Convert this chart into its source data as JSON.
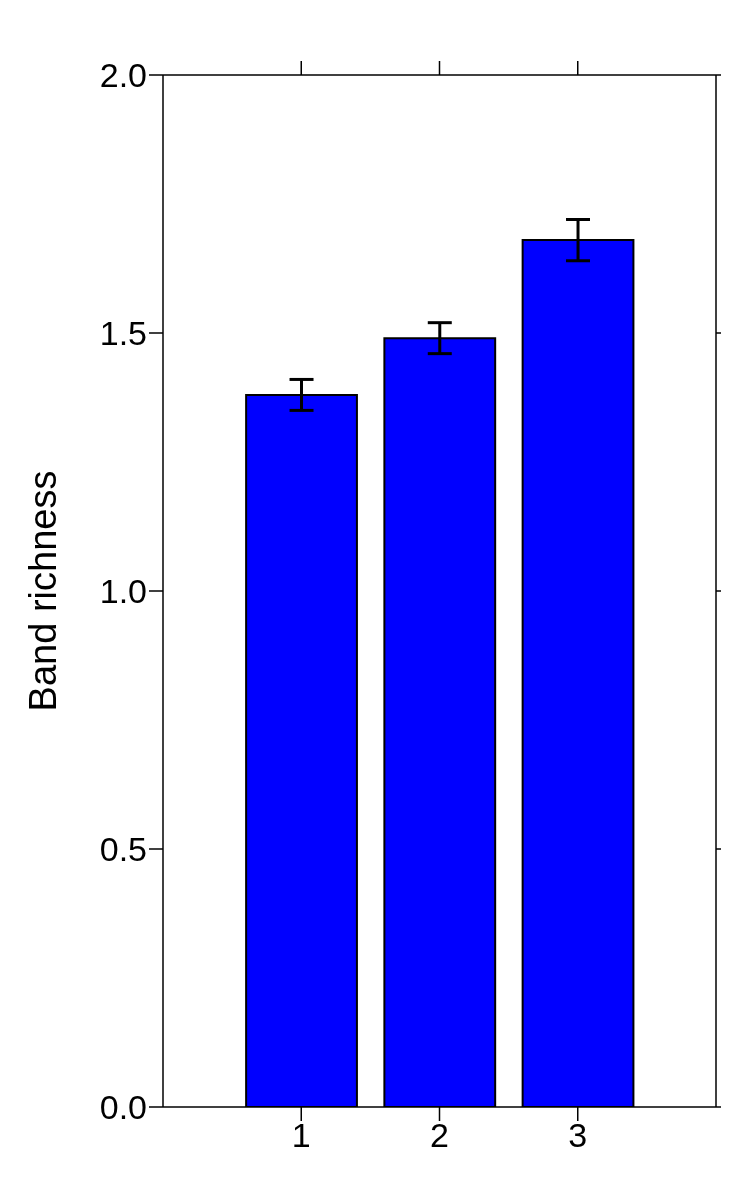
{
  "chart_data": {
    "type": "bar",
    "ylabel": "Band richness",
    "x": [
      1,
      2,
      3
    ],
    "xlim": [
      0,
      4
    ],
    "xticks": [
      1,
      2,
      3
    ],
    "values": [
      1.38,
      1.49,
      1.68
    ],
    "errors": [
      0.03,
      0.03,
      0.04
    ],
    "color": "#0000ff",
    "ylim": [
      0,
      2.0
    ],
    "yticks": [
      {
        "value": 0,
        "label": "0.0"
      },
      {
        "value": 0.5,
        "label": "0.5"
      },
      {
        "value": 1,
        "label": "1.0"
      },
      {
        "value": 1.5,
        "label": "1.5"
      },
      {
        "value": 2,
        "label": "2.0"
      }
    ],
    "grid": false,
    "legend": false
  }
}
